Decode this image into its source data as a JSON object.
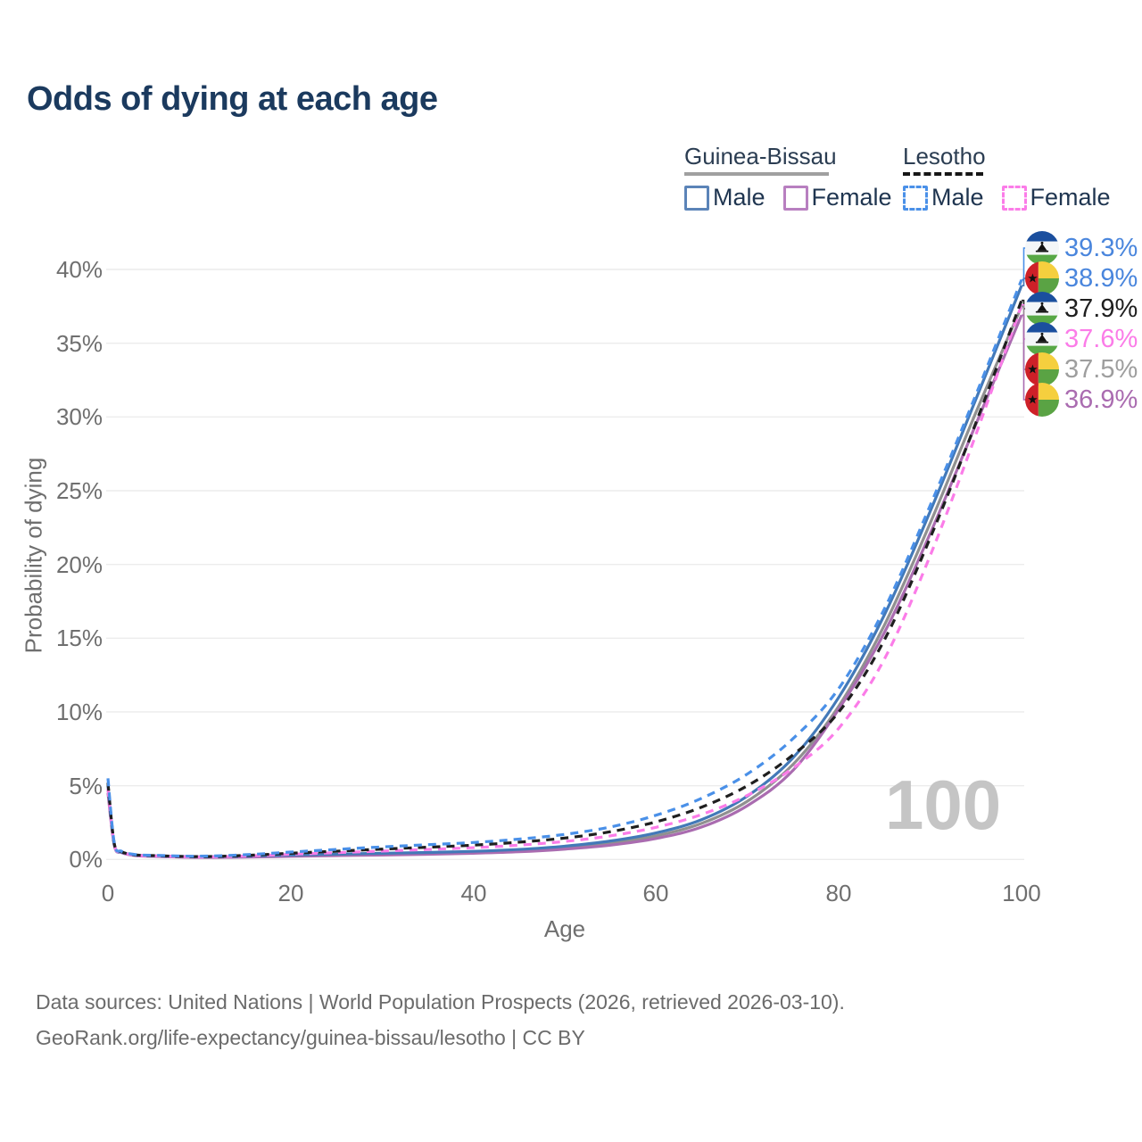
{
  "title": "Odds of dying at each age",
  "legend": {
    "group1": {
      "label": "Guinea-Bissau",
      "male": "Male",
      "female": "Female"
    },
    "group2": {
      "label": "Lesotho",
      "male": "Male",
      "female": "Female"
    }
  },
  "axes": {
    "x_label": "Age",
    "y_label": "Probability of dying",
    "x_tick_labels": [
      "0",
      "20",
      "40",
      "60",
      "80",
      "100"
    ],
    "y_tick_labels": [
      "0%",
      "5%",
      "10%",
      "15%",
      "20%",
      "25%",
      "30%",
      "35%",
      "40%"
    ]
  },
  "watermark": "100",
  "end_labels": [
    {
      "flag": "lesotho-flag",
      "value": "39.3%",
      "color": "#4a86dd"
    },
    {
      "flag": "guinea-bissau-flag",
      "value": "38.9%",
      "color": "#4a86dd"
    },
    {
      "flag": "lesotho-flag",
      "value": "37.9%",
      "color": "#1f1f1f"
    },
    {
      "flag": "lesotho-flag",
      "value": "37.6%",
      "color": "#fb7ce8"
    },
    {
      "flag": "guinea-bissau-flag",
      "value": "37.5%",
      "color": "#9e9e9e"
    },
    {
      "flag": "guinea-bissau-flag",
      "value": "36.9%",
      "color": "#aa6cb0"
    }
  ],
  "footer": {
    "line1": "Data sources: United Nations | World Population Prospects (2026, retrieved 2026-03-10).",
    "line2": "GeoRank.org/life-expectancy/guinea-bissau/lesotho | CC BY"
  },
  "chart_data": {
    "type": "line",
    "title": "Odds of dying at each age",
    "xlabel": "Age",
    "ylabel": "Probability of dying",
    "xlim": [
      0,
      100
    ],
    "ylim": [
      0,
      40
    ],
    "x_ticks": [
      0,
      20,
      40,
      60,
      80,
      100
    ],
    "y_ticks": [
      0,
      5,
      10,
      15,
      20,
      25,
      30,
      35,
      40
    ],
    "grid": "horizontal",
    "legend_position": "top-right",
    "x": [
      0,
      0.7,
      1.5,
      3,
      5,
      10,
      15,
      20,
      25,
      30,
      35,
      40,
      45,
      50,
      55,
      60,
      65,
      70,
      75,
      80,
      85,
      90,
      95,
      100
    ],
    "series": [
      {
        "name": "Lesotho Male",
        "style": "dashed",
        "color": "#4a90e8",
        "end_value": 39.3,
        "values": [
          5.5,
          1.1,
          0.55,
          0.33,
          0.28,
          0.22,
          0.32,
          0.5,
          0.68,
          0.85,
          1.0,
          1.15,
          1.38,
          1.7,
          2.2,
          3.0,
          4.15,
          5.8,
          8.2,
          11.6,
          17.0,
          24.0,
          31.5,
          39.3
        ]
      },
      {
        "name": "Guinea-Bissau Male",
        "style": "solid",
        "color": "#4379b8",
        "end_value": 38.9,
        "values": [
          5.0,
          1.0,
          0.5,
          0.3,
          0.25,
          0.18,
          0.22,
          0.3,
          0.36,
          0.42,
          0.47,
          0.55,
          0.68,
          0.9,
          1.25,
          1.8,
          2.7,
          4.3,
          6.9,
          11.0,
          16.6,
          23.6,
          31.2,
          38.9
        ]
      },
      {
        "name": "Lesotho Both sexes",
        "style": "dashed",
        "color": "#1f1f1f",
        "end_value": 37.9,
        "values": [
          5.2,
          1.05,
          0.52,
          0.31,
          0.26,
          0.19,
          0.27,
          0.42,
          0.56,
          0.7,
          0.83,
          0.97,
          1.17,
          1.45,
          1.88,
          2.55,
          3.55,
          5.0,
          7.1,
          10.0,
          14.9,
          21.8,
          29.6,
          37.9
        ]
      },
      {
        "name": "Lesotho Female",
        "style": "dashed",
        "color": "#fb7ce8",
        "end_value": 37.6,
        "values": [
          4.8,
          1.0,
          0.5,
          0.29,
          0.24,
          0.17,
          0.23,
          0.35,
          0.46,
          0.57,
          0.68,
          0.8,
          0.97,
          1.22,
          1.6,
          2.18,
          3.05,
          4.35,
          6.2,
          8.9,
          13.6,
          20.6,
          28.8,
          37.6
        ]
      },
      {
        "name": "Guinea-Bissau Both sexes",
        "style": "solid",
        "color": "#909090",
        "end_value": 37.5,
        "values": [
          4.8,
          0.97,
          0.48,
          0.28,
          0.23,
          0.16,
          0.19,
          0.26,
          0.31,
          0.36,
          0.41,
          0.48,
          0.6,
          0.8,
          1.1,
          1.6,
          2.45,
          3.95,
          6.45,
          10.4,
          15.9,
          22.8,
          30.3,
          37.5
        ]
      },
      {
        "name": "Guinea-Bissau Female",
        "style": "solid",
        "color": "#aa6cb0",
        "end_value": 36.9,
        "values": [
          4.5,
          0.95,
          0.46,
          0.26,
          0.21,
          0.14,
          0.16,
          0.21,
          0.26,
          0.3,
          0.35,
          0.42,
          0.52,
          0.7,
          0.97,
          1.42,
          2.2,
          3.65,
          6.05,
          10.2,
          15.4,
          22.1,
          29.5,
          36.9
        ]
      }
    ]
  }
}
